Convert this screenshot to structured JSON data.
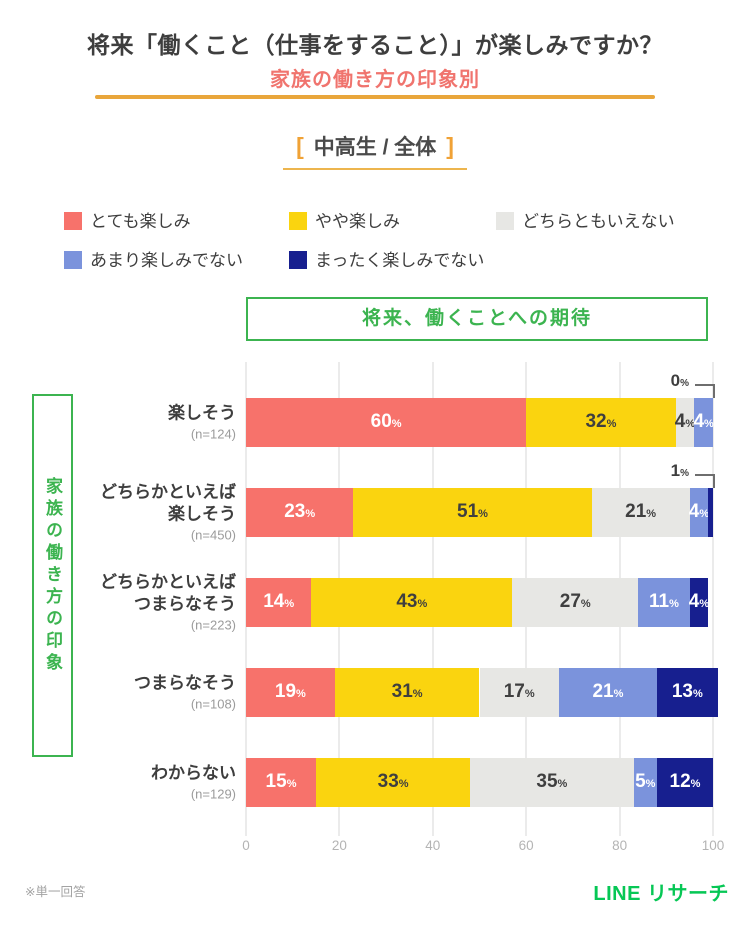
{
  "title": "将来「働くこと（仕事をすること）」が楽しみですか？",
  "subtitle": "家族の働き方の印象別",
  "audience": {
    "bracket_open": "[",
    "label": "中高生 / 全体",
    "bracket_close": "]"
  },
  "legend": [
    {
      "label": "とても楽しみ",
      "color": "#f7726b"
    },
    {
      "label": "やや楽しみ",
      "color": "#fad40f"
    },
    {
      "label": "どちらともいえない",
      "color": "#e7e7e4"
    },
    {
      "label": "あまり楽しみでない",
      "color": "#7b93dc"
    },
    {
      "label": "まったく楽しみでない",
      "color": "#171f8f"
    }
  ],
  "chart_header": "将来、働くことへの期待",
  "group_axis_label": "家族の働き方の印象",
  "footnote": "※単一回答",
  "brand": "LINE リサーチ",
  "colors": {
    "accent_orange": "#e9a63b",
    "bracket_orange": "#f0a236",
    "subtitle_salmon": "#f0746e",
    "frame_green": "#3cb450",
    "brand_green": "#06c755",
    "grid_gray": "#ebebeb",
    "tick_text": "#b4b4b4"
  },
  "chart_data": {
    "type": "bar",
    "orientation": "horizontal-stacked",
    "title": "将来、働くことへの期待",
    "group_title": "家族の働き方の印象",
    "categories": [
      "楽しそう",
      "どちらかといえば楽しそう",
      "どちらかといえばつまらなそう",
      "つまらなそう",
      "わからない"
    ],
    "category_label_lines": [
      [
        "楽しそう"
      ],
      [
        "どちらかといえば",
        "楽しそう"
      ],
      [
        "どちらかといえば",
        "つまらなそう"
      ],
      [
        "つまらなそう"
      ],
      [
        "わからない"
      ]
    ],
    "n_labels": [
      "(n=124)",
      "(n=450)",
      "(n=223)",
      "(n=108)",
      "(n=129)"
    ],
    "series": [
      {
        "name": "とても楽しみ",
        "color": "#f7726b",
        "label_color": "#ffffff",
        "values": [
          60,
          23,
          14,
          19,
          15
        ]
      },
      {
        "name": "やや楽しみ",
        "color": "#fad40f",
        "label_color": "#3f3f3f",
        "values": [
          32,
          51,
          43,
          31,
          33
        ]
      },
      {
        "name": "どちらともいえない",
        "color": "#e7e7e4",
        "label_color": "#3f3f3f",
        "values": [
          4,
          21,
          27,
          17,
          35
        ]
      },
      {
        "name": "あまり楽しみでない",
        "color": "#7b93dc",
        "label_color": "#ffffff",
        "values": [
          4,
          4,
          11,
          21,
          5
        ]
      },
      {
        "name": "まったく楽しみでない",
        "color": "#171f8f",
        "label_color": "#ffffff",
        "values": [
          0,
          1,
          4,
          13,
          12
        ]
      }
    ],
    "unit": "%",
    "xlim": [
      0,
      100
    ],
    "x_ticks": [
      0,
      20,
      40,
      60,
      80,
      100
    ],
    "grid": true,
    "legend_position": "top"
  }
}
